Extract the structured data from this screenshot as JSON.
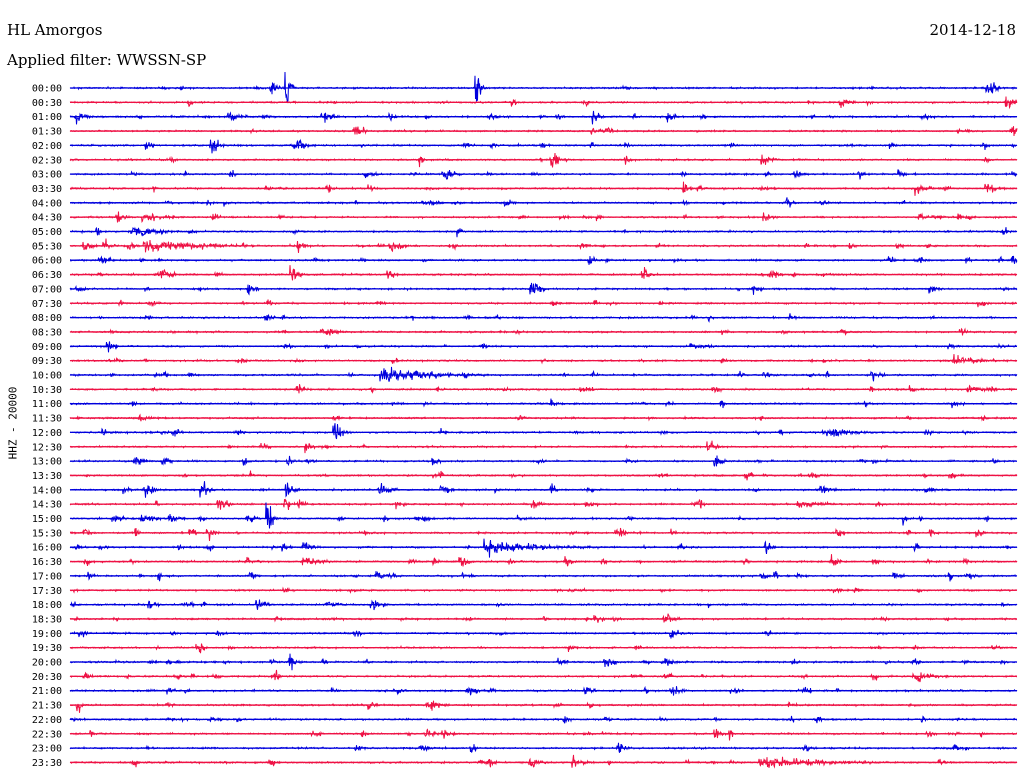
{
  "header": {
    "station": "HL Amorgos",
    "date": "2014-12-18",
    "filter": "Applied filter: WWSSN-SP",
    "channel": "HHZ - 20000"
  },
  "colors": {
    "even_trace": "#0000dd",
    "odd_trace": "#ee1144",
    "text": "#000000",
    "background": "#ffffff"
  },
  "chart_data": {
    "type": "line",
    "title": "HL Amorgos",
    "subtitle": "Applied filter: WWSSN-SP",
    "ylabel": "HHZ - 20000",
    "y_tick_labels": [
      "00:00",
      "00:30",
      "01:00",
      "01:30",
      "02:00",
      "02:30",
      "03:00",
      "03:30",
      "04:00",
      "04:30",
      "05:00",
      "05:30",
      "06:00",
      "06:30",
      "07:00",
      "07:30",
      "08:00",
      "08:30",
      "09:00",
      "09:30",
      "10:00",
      "10:30",
      "11:00",
      "11:30",
      "12:00",
      "12:30",
      "13:00",
      "13:30",
      "14:00",
      "14:30",
      "15:00",
      "15:30",
      "16:00",
      "16:30",
      "17:00",
      "17:30",
      "18:00",
      "18:30",
      "19:00",
      "19:30",
      "20:00",
      "20:30",
      "21:00",
      "21:30",
      "22:00",
      "22:30",
      "23:00",
      "23:30"
    ],
    "trace_minutes": 30,
    "grid": false,
    "legend": "none",
    "events": [
      {
        "row": "00:00",
        "x_fraction": 0.43,
        "amplitude": "large"
      },
      {
        "row": "00:00",
        "x_fraction": 0.23,
        "amplitude": "large"
      },
      {
        "row": "00:00",
        "x_fraction": 0.97,
        "amplitude": "medium"
      },
      {
        "row": "00:30",
        "x_fraction": 0.99,
        "amplitude": "medium"
      },
      {
        "row": "01:30",
        "x_fraction": 0.3,
        "amplitude": "medium"
      },
      {
        "row": "02:00",
        "x_fraction": 0.15,
        "amplitude": "medium"
      },
      {
        "row": "02:30",
        "x_fraction": 0.51,
        "amplitude": "medium"
      },
      {
        "row": "05:30",
        "x_fraction": 0.08,
        "amplitude": "burst"
      },
      {
        "row": "10:00",
        "x_fraction": 0.33,
        "amplitude": "burst"
      },
      {
        "row": "12:00",
        "x_fraction": 0.28,
        "amplitude": "medium"
      },
      {
        "row": "15:00",
        "x_fraction": 0.21,
        "amplitude": "large"
      },
      {
        "row": "16:00",
        "x_fraction": 0.44,
        "amplitude": "burst"
      },
      {
        "row": "23:30",
        "x_fraction": 0.73,
        "amplitude": "burst"
      }
    ]
  }
}
